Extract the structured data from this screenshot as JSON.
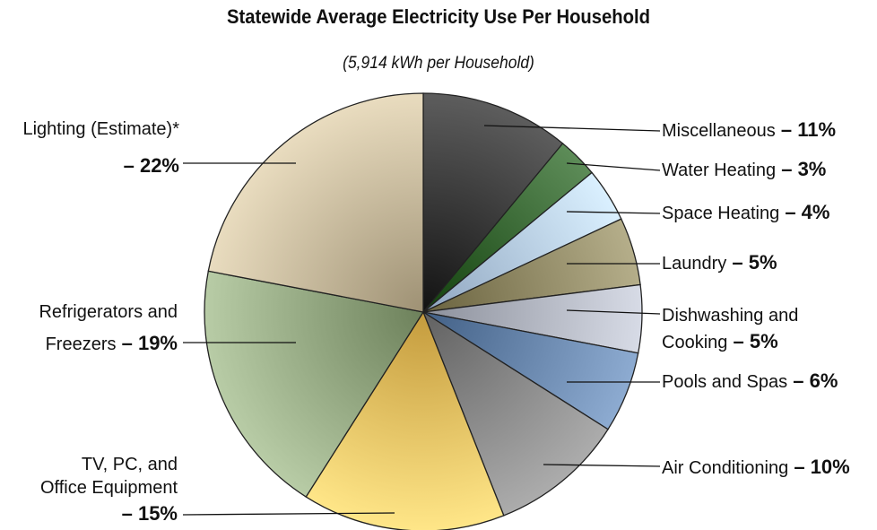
{
  "chart_data": {
    "type": "pie",
    "title": "Statewide Average Electricity Use Per Household",
    "subtitle": "(5,914 kWh per Household)",
    "slices": [
      {
        "label_lines": [
          "Miscellaneous"
        ],
        "pct_text": "11%",
        "value": 11,
        "color": "#3f3f3f",
        "side": "right"
      },
      {
        "label_lines": [
          "Water Heating"
        ],
        "pct_text": "3%",
        "value": 3,
        "color": "#3f6e3a",
        "side": "right"
      },
      {
        "label_lines": [
          "Space Heating"
        ],
        "pct_text": "4%",
        "value": 4,
        "color": "#bcd2ec",
        "side": "right"
      },
      {
        "label_lines": [
          "Laundry"
        ],
        "pct_text": "5%",
        "value": 5,
        "color": "#97906c",
        "side": "right"
      },
      {
        "label_lines": [
          "Dishwashing and",
          "Cooking"
        ],
        "pct_text": "5%",
        "value": 5,
        "color": "#b9bdc8",
        "side": "right"
      },
      {
        "label_lines": [
          "Pools and Spas"
        ],
        "pct_text": "6%",
        "value": 6,
        "color": "#6f8db3",
        "side": "right"
      },
      {
        "label_lines": [
          "Air Conditioning"
        ],
        "pct_text": "10%",
        "value": 10,
        "color": "#8e8e8e",
        "side": "right"
      },
      {
        "label_lines": [
          "TV, PC, and",
          "Office Equipment"
        ],
        "pct_text": "15%",
        "value": 15,
        "color": "#f1c86a",
        "side": "left"
      },
      {
        "label_lines": [
          "Refrigerators and",
          "Freezers"
        ],
        "pct_text": "19%",
        "value": 19,
        "color": "#9aae88",
        "side": "left"
      },
      {
        "label_lines": [
          "Lighting (Estimate)*"
        ],
        "pct_text": "22%",
        "value": 22,
        "color": "#cbbea1",
        "side": "left"
      }
    ]
  }
}
